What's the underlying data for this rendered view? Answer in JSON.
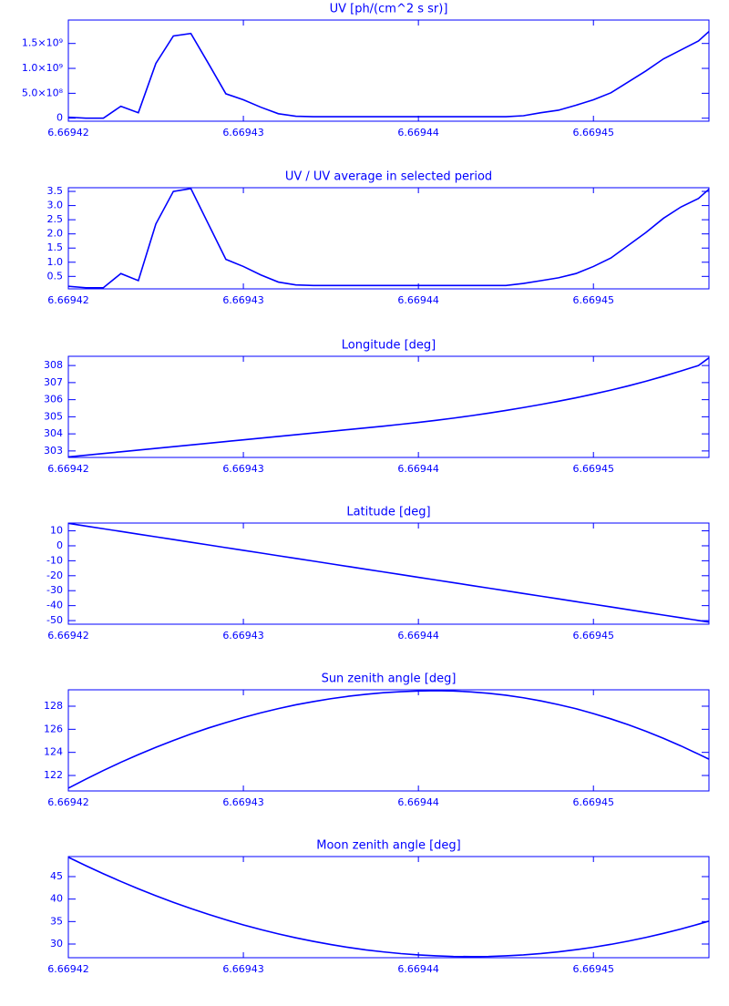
{
  "chart_data": [
    {
      "type": "line",
      "title": "UV [ph/(cm^2 s sr)]",
      "color": "#0000ff",
      "x": [
        6.66942,
        6.669421,
        6.669422,
        6.669423,
        6.669424,
        6.669425,
        6.669426,
        6.669427,
        6.669428,
        6.669429,
        6.66943,
        6.669431,
        6.669432,
        6.669433,
        6.669434,
        6.669435,
        6.669436,
        6.669437,
        6.669438,
        6.669439,
        6.66944,
        6.669441,
        6.669442,
        6.669443,
        6.669444,
        6.669445,
        6.669446,
        6.669447,
        6.669448,
        6.669449,
        6.66945,
        6.669451,
        6.669452,
        6.669453,
        6.669454,
        6.669455,
        6.669456,
        6.6694566
      ],
      "values": [
        20000000,
        0,
        0,
        240000000,
        110000000,
        1100000000,
        1650000000,
        1700000000,
        1100000000,
        490000000,
        370000000,
        220000000,
        90000000,
        40000000,
        30000000,
        30000000,
        30000000,
        30000000,
        30000000,
        30000000,
        30000000,
        30000000,
        30000000,
        30000000,
        30000000,
        30000000,
        50000000,
        110000000,
        160000000,
        260000000,
        370000000,
        510000000,
        730000000,
        950000000,
        1190000000,
        1370000000,
        1550000000,
        1740000000
      ],
      "xlim": [
        6.66942,
        6.6694566
      ],
      "xticks": [
        6.66942,
        6.66943,
        6.66944,
        6.66945
      ],
      "ylim": [
        -60000000,
        1970000000
      ],
      "yticks": [
        0,
        {
          "value": 500000000,
          "label": "5.0×10⁸"
        },
        {
          "value": 1000000000,
          "label": "1.0×10⁹"
        },
        {
          "value": 1500000000,
          "label": "1.5×10⁹"
        }
      ]
    },
    {
      "type": "line",
      "title": "UV / UV average in selected period",
      "color": "#0000ff",
      "x": [
        6.66942,
        6.669421,
        6.669422,
        6.669423,
        6.669424,
        6.669425,
        6.669426,
        6.669427,
        6.669428,
        6.669429,
        6.66943,
        6.669431,
        6.669432,
        6.669433,
        6.669434,
        6.669435,
        6.669436,
        6.669437,
        6.669438,
        6.669439,
        6.66944,
        6.669441,
        6.669442,
        6.669443,
        6.669444,
        6.669445,
        6.669446,
        6.669447,
        6.669448,
        6.669449,
        6.66945,
        6.669451,
        6.669452,
        6.669453,
        6.669454,
        6.669455,
        6.669456,
        6.6694566
      ],
      "values": [
        0.15,
        0.1,
        0.1,
        0.6,
        0.35,
        2.35,
        3.5,
        3.6,
        2.35,
        1.1,
        0.85,
        0.55,
        0.3,
        0.2,
        0.18,
        0.18,
        0.18,
        0.18,
        0.18,
        0.18,
        0.18,
        0.18,
        0.18,
        0.18,
        0.18,
        0.18,
        0.25,
        0.35,
        0.45,
        0.6,
        0.85,
        1.15,
        1.6,
        2.05,
        2.55,
        2.95,
        3.25,
        3.58
      ],
      "xlim": [
        6.66942,
        6.6694566
      ],
      "xticks": [
        6.66942,
        6.66943,
        6.66944,
        6.66945
      ],
      "ylim": [
        0.06,
        3.63
      ],
      "yticks": [
        0.5,
        {
          "value": 1,
          "label": "1.0"
        },
        1.5,
        {
          "value": 2,
          "label": "2.0"
        },
        2.5,
        {
          "value": 3,
          "label": "3.0"
        },
        3.5
      ]
    },
    {
      "type": "line",
      "title": "Longitude [deg]",
      "color": "#0000ff",
      "x": [
        6.66942,
        6.669421,
        6.669422,
        6.669423,
        6.669424,
        6.669425,
        6.669426,
        6.669427,
        6.669428,
        6.669429,
        6.66943,
        6.669431,
        6.669432,
        6.669433,
        6.669434,
        6.669435,
        6.669436,
        6.669437,
        6.669438,
        6.669439,
        6.66944,
        6.669441,
        6.669442,
        6.669443,
        6.669444,
        6.669445,
        6.669446,
        6.669447,
        6.669448,
        6.669449,
        6.66945,
        6.669451,
        6.669452,
        6.669453,
        6.669454,
        6.669455,
        6.669456,
        6.6694566
      ],
      "values": [
        302.65,
        302.75,
        302.85,
        302.95,
        303.05,
        303.15,
        303.25,
        303.35,
        303.45,
        303.55,
        303.65,
        303.75,
        303.85,
        303.95,
        304.05,
        304.15,
        304.25,
        304.35,
        304.45,
        304.56,
        304.67,
        304.79,
        304.92,
        305.06,
        305.21,
        305.37,
        305.54,
        305.72,
        305.91,
        306.11,
        306.33,
        306.56,
        306.81,
        307.08,
        307.37,
        307.68,
        308.0,
        308.45
      ],
      "xlim": [
        6.66942,
        6.6694566
      ],
      "xticks": [
        6.66942,
        6.66943,
        6.66944,
        6.66945
      ],
      "ylim": [
        302.62,
        308.54
      ],
      "yticks": [
        303,
        304,
        305,
        306,
        307,
        308
      ]
    },
    {
      "type": "line",
      "title": "Latitude [deg]",
      "color": "#0000ff",
      "x": [
        6.66942,
        6.669421,
        6.669422,
        6.669423,
        6.669424,
        6.669425,
        6.669426,
        6.669427,
        6.669428,
        6.669429,
        6.66943,
        6.669431,
        6.669432,
        6.669433,
        6.669434,
        6.669435,
        6.669436,
        6.669437,
        6.669438,
        6.669439,
        6.66944,
        6.669441,
        6.669442,
        6.669443,
        6.669444,
        6.669445,
        6.669446,
        6.669447,
        6.669448,
        6.669449,
        6.66945,
        6.669451,
        6.669452,
        6.669453,
        6.669454,
        6.669455,
        6.669456,
        6.6694566
      ],
      "values": [
        15,
        13.2,
        11.39,
        9.59,
        7.79,
        5.98,
        4.18,
        2.38,
        0.58,
        -1.23,
        -3.03,
        -4.83,
        -6.64,
        -8.44,
        -10.24,
        -12.05,
        -13.85,
        -15.65,
        -17.45,
        -19.26,
        -21.06,
        -22.86,
        -24.67,
        -26.47,
        -28.27,
        -30.08,
        -31.88,
        -33.68,
        -35.48,
        -37.29,
        -39.09,
        -40.89,
        -42.7,
        -44.5,
        -46.3,
        -48.11,
        -49.91,
        -51
      ],
      "xlim": [
        6.66942,
        6.6694566
      ],
      "xticks": [
        6.66942,
        6.66943,
        6.66944,
        6.66945
      ],
      "ylim": [
        -52.4,
        15.2
      ],
      "yticks": [
        -50,
        -40,
        -30,
        -20,
        -10,
        0,
        10
      ]
    },
    {
      "type": "line",
      "title": "Sun zenith angle [deg]",
      "color": "#0000ff",
      "x": [
        6.66942,
        6.669421,
        6.669422,
        6.669423,
        6.669424,
        6.669425,
        6.669426,
        6.669427,
        6.669428,
        6.669429,
        6.66943,
        6.669431,
        6.669432,
        6.669433,
        6.669434,
        6.669435,
        6.669436,
        6.669437,
        6.669438,
        6.669439,
        6.66944,
        6.669441,
        6.669442,
        6.669443,
        6.669444,
        6.669445,
        6.669446,
        6.669447,
        6.669448,
        6.669449,
        6.66945,
        6.669451,
        6.669452,
        6.669453,
        6.669454,
        6.669455,
        6.669456,
        6.6694566
      ],
      "values": [
        120.9,
        121.68,
        122.43,
        123.14,
        123.81,
        124.44,
        125.03,
        125.59,
        126.11,
        126.58,
        127.02,
        127.43,
        127.79,
        128.12,
        128.4,
        128.65,
        128.86,
        129.03,
        129.17,
        129.26,
        129.32,
        129.34,
        129.32,
        129.24,
        129.12,
        128.95,
        128.73,
        128.46,
        128.14,
        127.78,
        127.36,
        126.9,
        126.39,
        125.83,
        125.22,
        124.56,
        123.85,
        123.41
      ],
      "xlim": [
        6.66942,
        6.6694566
      ],
      "xticks": [
        6.66942,
        6.66943,
        6.66944,
        6.66945
      ],
      "ylim": [
        120.66,
        129.42
      ],
      "yticks": [
        122,
        124,
        126,
        128
      ]
    },
    {
      "type": "line",
      "title": "Moon zenith angle [deg]",
      "color": "#0000ff",
      "x": [
        6.66942,
        6.669421,
        6.669422,
        6.669423,
        6.669424,
        6.669425,
        6.669426,
        6.669427,
        6.669428,
        6.669429,
        6.66943,
        6.669431,
        6.669432,
        6.669433,
        6.669434,
        6.669435,
        6.669436,
        6.669437,
        6.669438,
        6.669439,
        6.66944,
        6.669441,
        6.669442,
        6.669443,
        6.669444,
        6.669445,
        6.669446,
        6.669447,
        6.669448,
        6.669449,
        6.66945,
        6.669451,
        6.669452,
        6.669453,
        6.669454,
        6.669455,
        6.669456,
        6.6694566
      ],
      "values": [
        49.31,
        47.43,
        45.63,
        43.92,
        42.29,
        40.74,
        39.28,
        37.9,
        36.61,
        35.39,
        34.26,
        33.22,
        32.26,
        31.38,
        30.59,
        29.88,
        29.25,
        28.7,
        28.25,
        27.87,
        27.58,
        27.37,
        27.24,
        27.2,
        27.24,
        27.37,
        27.58,
        27.88,
        28.27,
        28.74,
        29.29,
        29.93,
        30.66,
        31.47,
        32.37,
        33.35,
        34.42,
        35.1
      ],
      "xlim": [
        6.66942,
        6.6694566
      ],
      "xticks": [
        6.66942,
        6.66943,
        6.66944,
        6.66945
      ],
      "ylim": [
        26.96,
        49.46
      ],
      "yticks": [
        30,
        35,
        40,
        45
      ]
    }
  ]
}
